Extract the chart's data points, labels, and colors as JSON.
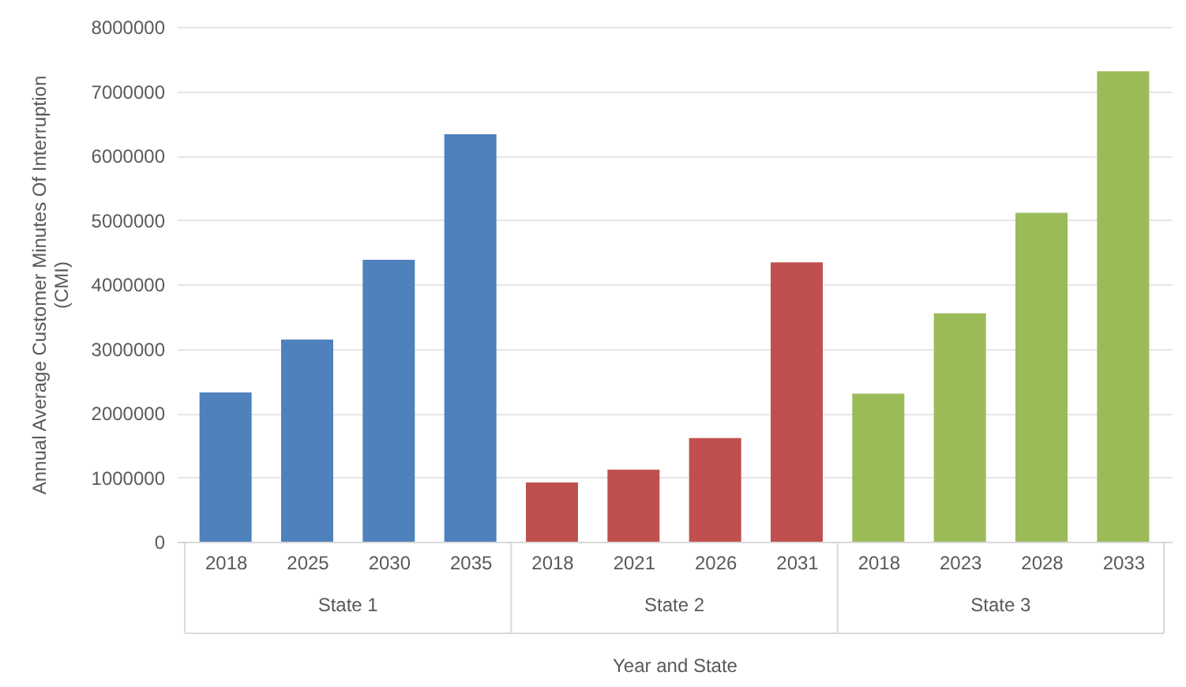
{
  "chart_data": {
    "type": "bar",
    "xlabel": "Year and State",
    "ylabel": "Annual Average Customer Minutes Of Interruption (CMI)",
    "categories": [
      "2018",
      "2025",
      "2030",
      "2035",
      "2018",
      "2021",
      "2026",
      "2031",
      "2018",
      "2023",
      "2028",
      "2033"
    ],
    "series": [
      {
        "name": "State 1",
        "color": "#4f81bd",
        "values": [
          2320000,
          3140000,
          4380000,
          6330000,
          null,
          null,
          null,
          null,
          null,
          null,
          null,
          null
        ]
      },
      {
        "name": "State 2",
        "color": "#c0504d",
        "values": [
          null,
          null,
          null,
          null,
          920000,
          1120000,
          1610000,
          4340000,
          null,
          null,
          null,
          null
        ]
      },
      {
        "name": "State 3",
        "color": "#9bbb59",
        "values": [
          null,
          null,
          null,
          null,
          null,
          null,
          null,
          null,
          2300000,
          3550000,
          5110000,
          7310000
        ]
      }
    ],
    "ylim": [
      0,
      8000000
    ],
    "yticks": [
      0,
      1000000,
      2000000,
      3000000,
      4000000,
      5000000,
      6000000,
      7000000,
      8000000
    ],
    "grid": "y"
  }
}
